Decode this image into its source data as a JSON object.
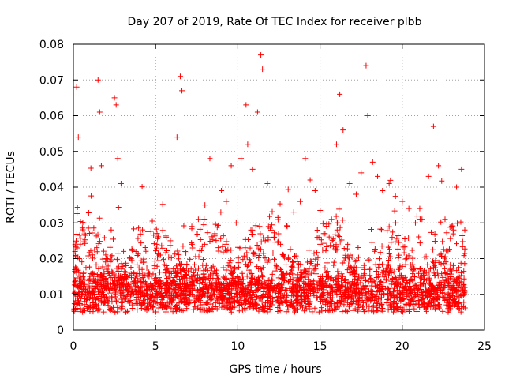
{
  "chart_data": {
    "type": "scatter",
    "title": "Day 207 of 2019, Rate Of TEC Index for receiver plbb",
    "xlabel": "GPS time / hours",
    "ylabel": "ROTI / TECUs",
    "xlim": [
      0,
      25
    ],
    "ylim": [
      0,
      0.08
    ],
    "xticks": [
      0,
      5,
      10,
      15,
      20,
      25
    ],
    "xtick_labels": [
      "0",
      "5",
      "10",
      "15",
      "20",
      "25"
    ],
    "yticks": [
      0,
      0.01,
      0.02,
      0.03,
      0.04,
      0.05,
      0.06,
      0.07,
      0.08
    ],
    "ytick_labels": [
      "0",
      "0.01",
      "0.02",
      "0.03",
      "0.04",
      "0.05",
      "0.06",
      "0.07",
      "0.08"
    ],
    "grid": true,
    "marker": "+",
    "color": "#ff0000",
    "series": [
      {
        "name": "ROTI",
        "x": [
          0.1,
          0.2,
          0.3,
          0.5,
          0.8,
          1.0,
          1.2,
          1.5,
          1.6,
          1.7,
          2.0,
          2.3,
          2.5,
          2.6,
          2.7,
          2.9,
          3.2,
          3.5,
          3.8,
          4.0,
          4.3,
          4.6,
          5.0,
          5.3,
          5.6,
          5.9,
          6.3,
          6.5,
          6.6,
          6.8,
          7.2,
          7.6,
          8.0,
          8.3,
          8.6,
          9.0,
          9.3,
          9.6,
          9.9,
          10.2,
          10.5,
          10.6,
          10.9,
          11.2,
          11.4,
          11.5,
          11.8,
          12.2,
          12.6,
          13.0,
          13.4,
          13.8,
          14.1,
          14.4,
          14.7,
          15.0,
          15.3,
          15.7,
          16.0,
          16.2,
          16.4,
          16.8,
          17.2,
          17.5,
          17.8,
          17.9,
          18.2,
          18.5,
          18.8,
          19.2,
          19.6,
          20.0,
          20.4,
          20.8,
          21.2,
          21.6,
          21.9,
          22.2,
          22.6,
          23.0,
          23.3,
          23.6,
          23.8
        ],
        "y": [
          0.022,
          0.068,
          0.054,
          0.012,
          0.009,
          0.015,
          0.011,
          0.07,
          0.061,
          0.046,
          0.02,
          0.028,
          0.065,
          0.063,
          0.048,
          0.041,
          0.018,
          0.012,
          0.022,
          0.011,
          0.019,
          0.015,
          0.013,
          0.021,
          0.016,
          0.025,
          0.054,
          0.071,
          0.067,
          0.022,
          0.029,
          0.031,
          0.035,
          0.048,
          0.027,
          0.039,
          0.036,
          0.046,
          0.03,
          0.048,
          0.063,
          0.052,
          0.045,
          0.061,
          0.077,
          0.073,
          0.041,
          0.026,
          0.024,
          0.029,
          0.033,
          0.036,
          0.048,
          0.042,
          0.039,
          0.024,
          0.027,
          0.031,
          0.052,
          0.066,
          0.056,
          0.041,
          0.038,
          0.044,
          0.074,
          0.06,
          0.047,
          0.043,
          0.039,
          0.041,
          0.03,
          0.036,
          0.034,
          0.03,
          0.031,
          0.043,
          0.057,
          0.046,
          0.031,
          0.029,
          0.04,
          0.045,
          0.028
        ]
      }
    ]
  }
}
